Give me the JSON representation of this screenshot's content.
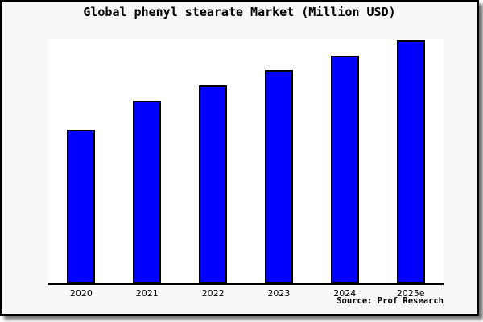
{
  "chart_data": {
    "type": "bar",
    "title": "Global phenyl stearate Market (Million USD)",
    "categories": [
      "2020",
      "2021",
      "2022",
      "2023",
      "2024",
      "2025e"
    ],
    "values": [
      0.627,
      0.747,
      0.809,
      0.872,
      0.931,
      0.992
    ],
    "values_note": "no y-axis scale or data labels shown in image; values are bar heights as fraction of plot height (estimated from pixels)",
    "values_indexed_2020_100": [
      100,
      119.2,
      129.1,
      139.1,
      148.6,
      158.3
    ],
    "xlabel": "",
    "ylabel": "",
    "y_axis_labels_visible": false,
    "gridlines": false,
    "legend": false,
    "bar_color": "#0000ff",
    "bar_border_color": "#000000",
    "axis_line_color": "#000000",
    "plot_background": "#ffffff",
    "canvas_background": "#f8f8f8",
    "source_note": "Source: Prof Research"
  }
}
